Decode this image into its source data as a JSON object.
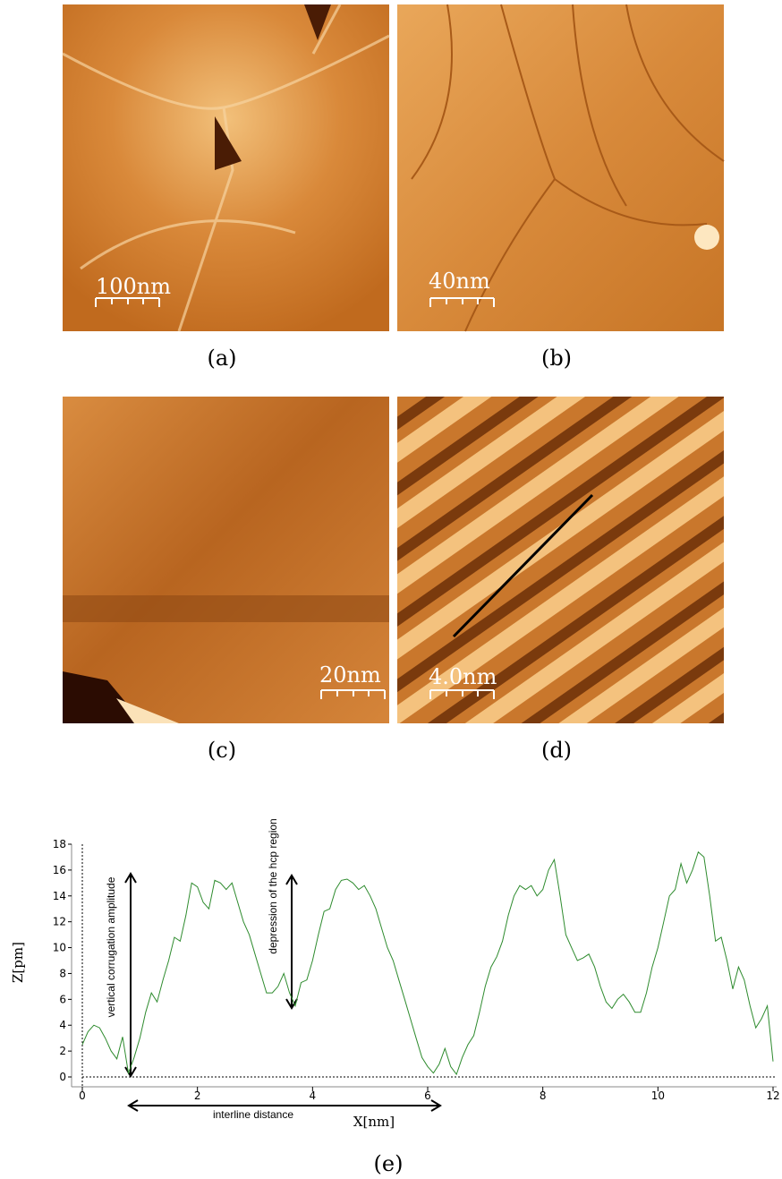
{
  "images": [
    {
      "caption": "(a)",
      "scale_label": "100nm"
    },
    {
      "caption": "(b)",
      "scale_label": "40nm"
    },
    {
      "caption": "(c)",
      "scale_label": "20nm"
    },
    {
      "caption": "(d)",
      "scale_label": "4.0nm"
    }
  ],
  "chart_caption": "(e)",
  "chart_data": {
    "type": "line",
    "x_label": "X[nm]",
    "y_label": "Z[pm]",
    "annotations": [
      "vertical corrugation amplitude",
      "depression of the hcp region",
      "interline distance"
    ],
    "x": [
      0,
      0.1,
      0.2,
      0.3,
      0.4,
      0.5,
      0.6,
      0.7,
      0.8,
      0.9,
      1,
      1.1,
      1.2,
      1.3,
      1.4,
      1.5,
      1.6,
      1.7,
      1.8,
      1.9,
      2,
      2.1,
      2.2,
      2.3,
      2.4,
      2.5,
      2.6,
      2.7,
      2.8,
      2.9,
      3,
      3.1,
      3.2,
      3.3,
      3.4,
      3.5,
      3.6,
      3.7,
      3.8,
      3.9,
      4,
      4.1,
      4.2,
      4.3,
      4.4,
      4.5,
      4.6,
      4.7,
      4.8,
      4.9,
      5,
      5.1,
      5.2,
      5.3,
      5.4,
      5.5,
      5.6,
      5.7,
      5.8,
      5.9,
      6,
      6.1,
      6.2,
      6.3,
      6.4,
      6.5,
      6.6,
      6.7,
      6.8,
      6.9,
      7,
      7.1,
      7.2,
      7.3,
      7.4,
      7.5,
      7.6,
      7.7,
      7.8,
      7.9,
      8,
      8.1,
      8.2,
      8.3,
      8.4,
      8.5,
      8.6,
      8.7,
      8.8,
      8.9,
      9,
      9.1,
      9.2,
      9.3,
      9.4,
      9.5,
      9.6,
      9.7,
      9.8,
      9.9,
      10,
      10.1,
      10.2,
      10.3,
      10.4,
      10.5,
      10.6,
      10.7,
      10.8,
      10.9,
      11,
      11.1,
      11.2,
      11.3,
      11.4,
      11.5,
      11.6,
      11.7,
      11.8,
      11.9,
      12
    ],
    "series": [
      {
        "color": "#2e8b2e",
        "values": [
          2.5,
          3.5,
          4.0,
          3.8,
          3.0,
          2.0,
          1.4,
          3.1,
          0.3,
          1.5,
          3.0,
          5.0,
          6.5,
          5.8,
          7.5,
          9.0,
          10.8,
          10.5,
          12.5,
          15.0,
          14.7,
          13.5,
          13.0,
          15.2,
          15.0,
          14.5,
          15.0,
          13.5,
          12.0,
          11.0,
          9.5,
          8.0,
          6.5,
          6.5,
          7.0,
          8.0,
          6.5,
          5.5,
          7.3,
          7.5,
          9.0,
          11.0,
          12.8,
          13.0,
          14.5,
          15.2,
          15.3,
          15.0,
          14.5,
          14.8,
          14.0,
          13.0,
          11.5,
          10.0,
          9.0,
          7.5,
          6.0,
          4.5,
          3.0,
          1.5,
          0.8,
          0.3,
          1.0,
          2.2,
          0.8,
          0.2,
          1.5,
          2.5,
          3.2,
          5.0,
          7.0,
          8.5,
          9.3,
          10.5,
          12.5,
          14.0,
          14.8,
          14.5,
          14.8,
          14.0,
          14.5,
          16.0,
          16.8,
          14.0,
          11.0,
          10.0,
          9.0,
          9.2,
          9.5,
          8.5,
          7.0,
          5.8,
          5.3,
          6.0,
          6.4,
          5.8,
          5.0,
          5.0,
          6.5,
          8.5,
          10.0,
          12.0,
          14.0,
          14.5,
          16.5,
          15.0,
          16.0,
          17.4,
          17.0,
          14.0,
          10.5,
          10.8,
          9.0,
          6.8,
          8.5,
          7.5,
          5.5,
          3.8,
          4.5,
          5.5,
          1.2
        ]
      }
    ],
    "xlim": [
      0,
      12
    ],
    "ylim": [
      0,
      18
    ],
    "xticks": [
      0,
      2,
      4,
      6,
      8,
      10,
      12
    ],
    "yticks": [
      0,
      2,
      4,
      6,
      8,
      10,
      12,
      14,
      16,
      18
    ]
  }
}
